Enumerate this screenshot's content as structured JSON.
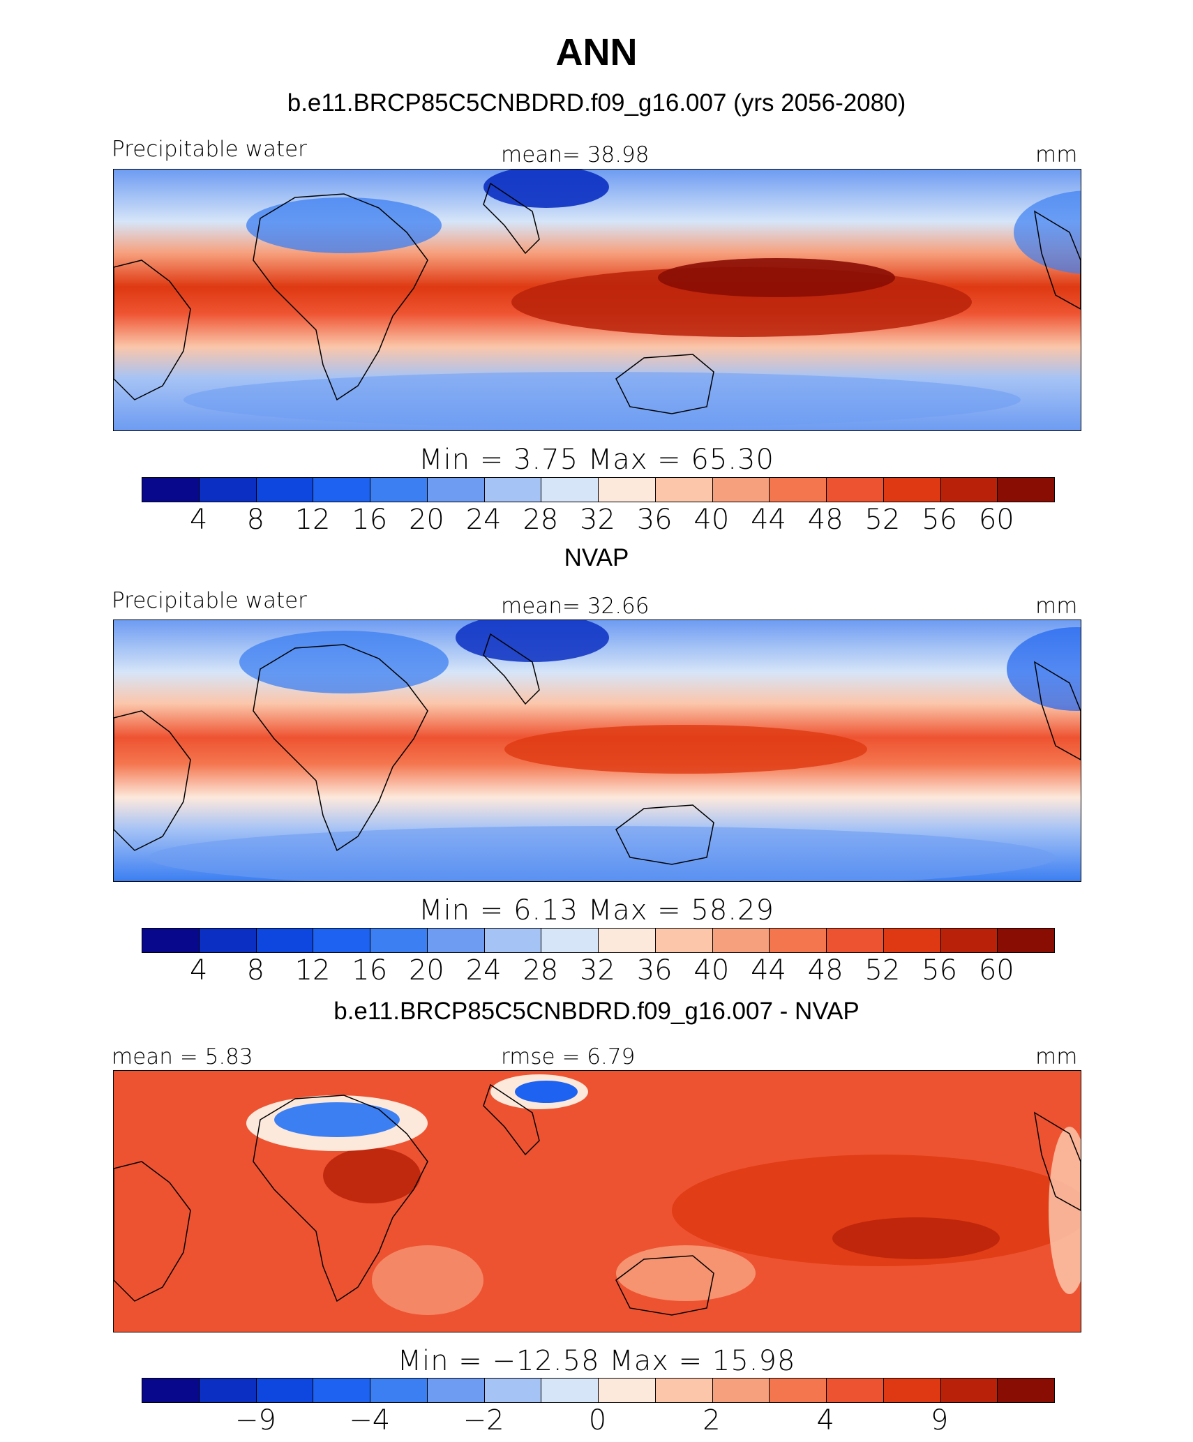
{
  "title": "ANN",
  "panels": [
    {
      "header": "b.e11.BRCP85C5CNBDRD.f09_g16.007 (yrs 2056-2080)",
      "left_label": "Precipitable water",
      "center_label": "mean=   38.98",
      "right_label": "mm",
      "minmax": "Min =     3.75  Max =    65.30",
      "ticks": [
        "4",
        "8",
        "12",
        "16",
        "20",
        "24",
        "28",
        "32",
        "36",
        "40",
        "44",
        "48",
        "52",
        "56",
        "60"
      ]
    },
    {
      "header": "NVAP",
      "left_label": "Precipitable water",
      "center_label": "mean=   32.66",
      "right_label": "mm",
      "minmax": "Min =     6.13  Max =    58.29",
      "ticks": [
        "4",
        "8",
        "12",
        "16",
        "20",
        "24",
        "28",
        "32",
        "36",
        "40",
        "44",
        "48",
        "52",
        "56",
        "60"
      ]
    },
    {
      "header": "b.e11.BRCP85C5CNBDRD.f09_g16.007 - NVAP",
      "left_label": "mean =     5.83",
      "center_label": "rmse =     6.79",
      "right_label": "mm",
      "minmax": "Min = −12.58  Max =    15.98",
      "ticks": [
        "−9",
        "−4",
        "−2",
        "0",
        "2",
        "4",
        "9"
      ]
    }
  ],
  "colormap": [
    "#08088c",
    "#0a2fc2",
    "#0e47e0",
    "#1d62f0",
    "#3c7ff2",
    "#6e9cf2",
    "#a6c3f5",
    "#d6e5f8",
    "#fde9dc",
    "#fbc6aa",
    "#f7a07d",
    "#f4764f",
    "#ee5331",
    "#de3912",
    "#b92209",
    "#8a0d04"
  ],
  "land_outline_color": "#000000"
}
